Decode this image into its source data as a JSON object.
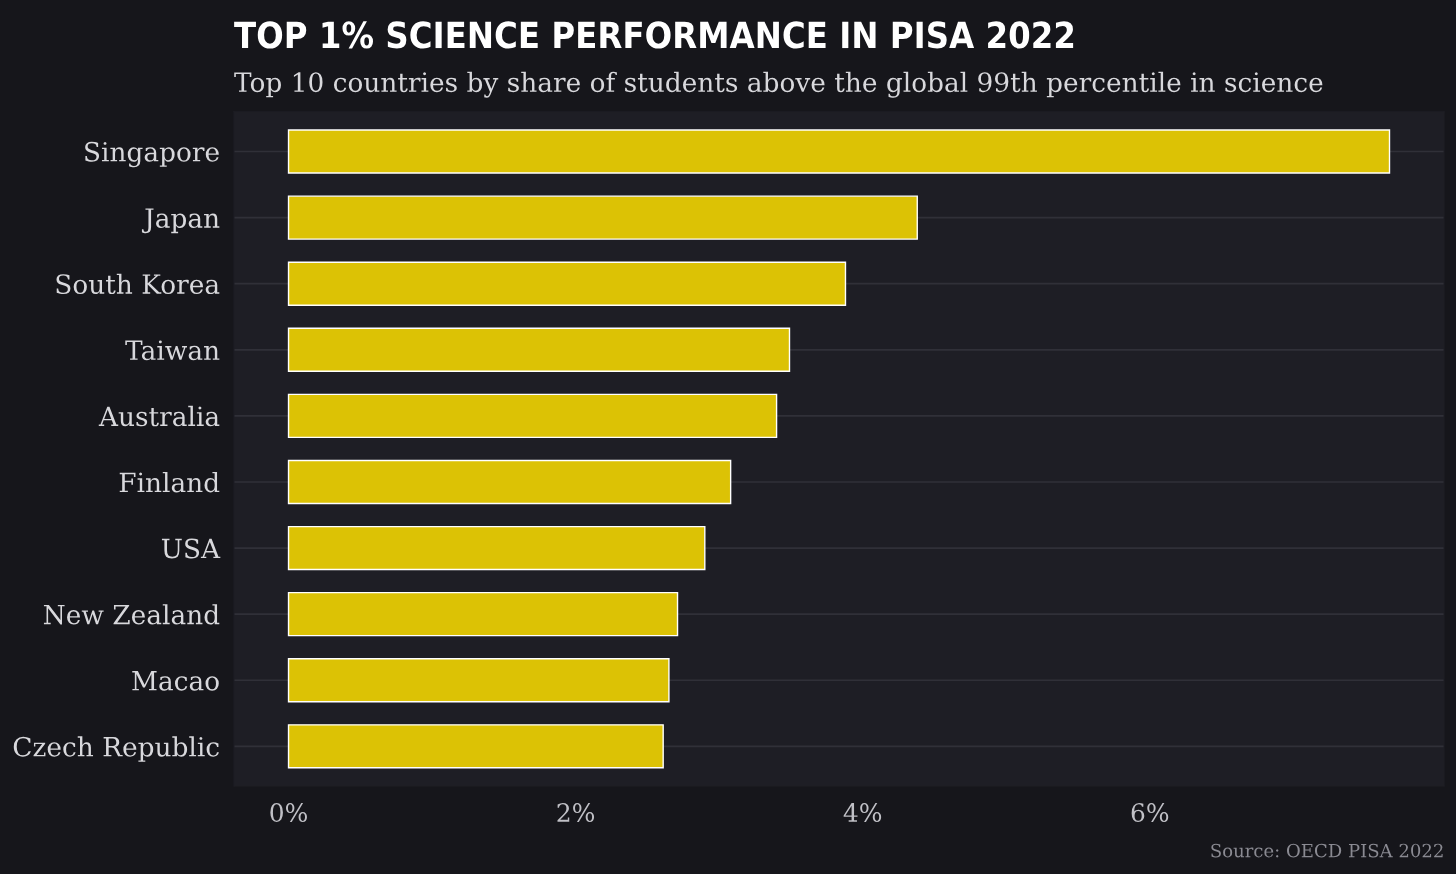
{
  "chart_data": {
    "type": "bar",
    "orientation": "horizontal",
    "title": "TOP 1% SCIENCE PERFORMANCE IN PISA 2022",
    "subtitle": "Top 10 countries by share of students above the global 99th percentile in science",
    "categories": [
      "Singapore",
      "Japan",
      "South Korea",
      "Taiwan",
      "Australia",
      "Finland",
      "USA",
      "New Zealand",
      "Macao",
      "Czech Republic"
    ],
    "values": [
      7.67,
      4.38,
      3.88,
      3.49,
      3.4,
      3.08,
      2.9,
      2.71,
      2.65,
      2.61
    ],
    "color": "#dcc205",
    "xlim": [
      -0.38,
      8.05
    ],
    "xticks": [
      {
        "value": 0,
        "label": "0%"
      },
      {
        "value": 2,
        "label": "2%"
      },
      {
        "value": 4,
        "label": "4%"
      },
      {
        "value": 6,
        "label": "6%"
      }
    ],
    "grid": "y",
    "annotations": [
      "Source: OECD PISA 2022"
    ]
  }
}
